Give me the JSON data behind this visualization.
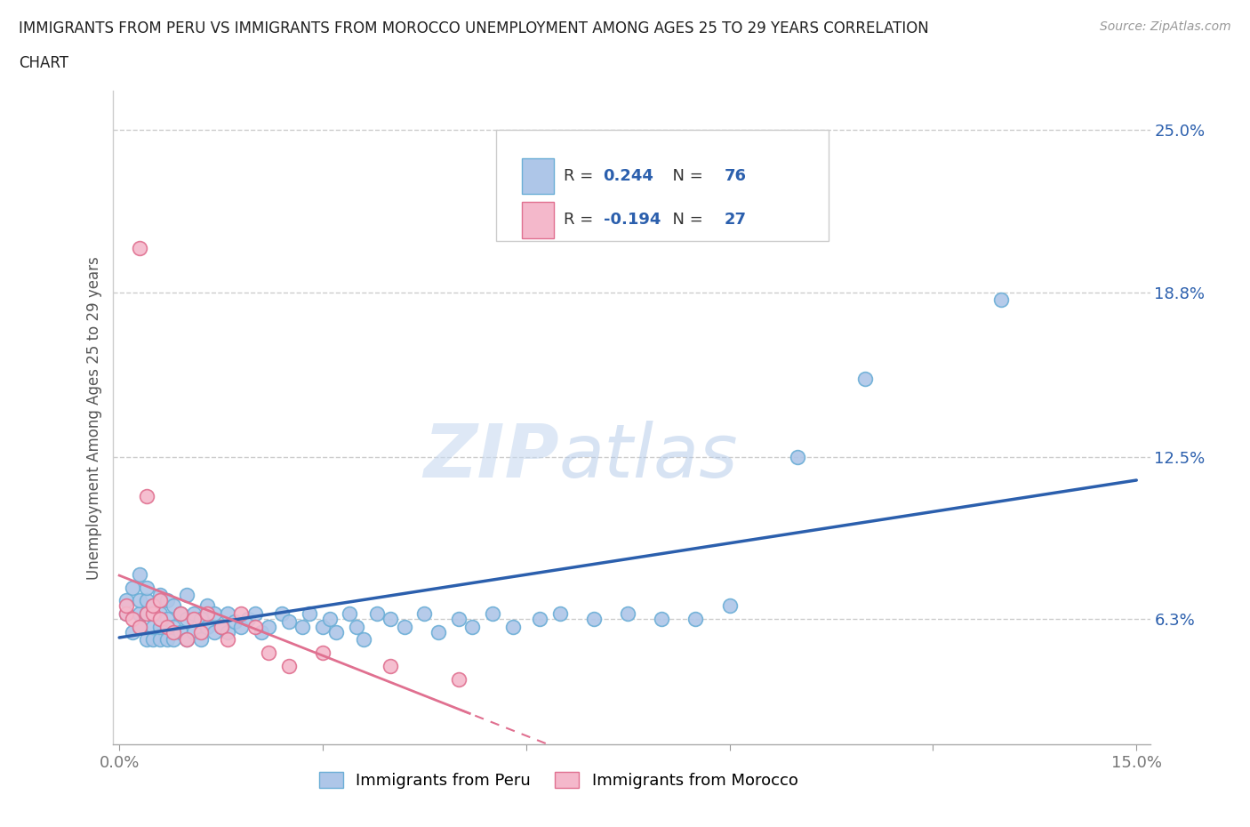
{
  "title_line1": "IMMIGRANTS FROM PERU VS IMMIGRANTS FROM MOROCCO UNEMPLOYMENT AMONG AGES 25 TO 29 YEARS CORRELATION",
  "title_line2": "CHART",
  "source": "Source: ZipAtlas.com",
  "ylabel": "Unemployment Among Ages 25 to 29 years",
  "ytick_labels": [
    "6.3%",
    "12.5%",
    "18.8%",
    "25.0%"
  ],
  "ytick_values": [
    0.063,
    0.125,
    0.188,
    0.25
  ],
  "xmin": -0.001,
  "xmax": 0.152,
  "ymin": 0.015,
  "ymax": 0.265,
  "peru_color": "#aec6e8",
  "peru_edge_color": "#6baed6",
  "morocco_color": "#f4b8cb",
  "morocco_edge_color": "#e07090",
  "trend_peru_color": "#2b5fad",
  "trend_morocco_color": "#e07090",
  "watermark_color": "#dce8f5",
  "legend_peru_label": "Immigrants from Peru",
  "legend_morocco_label": "Immigrants from Morocco",
  "peru_R": 0.244,
  "peru_N": 76,
  "morocco_R": -0.194,
  "morocco_N": 27,
  "peru_x": [
    0.001,
    0.001,
    0.002,
    0.002,
    0.003,
    0.003,
    0.003,
    0.003,
    0.004,
    0.004,
    0.004,
    0.004,
    0.005,
    0.005,
    0.005,
    0.006,
    0.006,
    0.006,
    0.006,
    0.007,
    0.007,
    0.007,
    0.008,
    0.008,
    0.008,
    0.009,
    0.009,
    0.01,
    0.01,
    0.01,
    0.011,
    0.011,
    0.012,
    0.012,
    0.013,
    0.013,
    0.014,
    0.014,
    0.015,
    0.016,
    0.016,
    0.017,
    0.018,
    0.019,
    0.02,
    0.021,
    0.022,
    0.024,
    0.025,
    0.027,
    0.028,
    0.03,
    0.031,
    0.032,
    0.034,
    0.035,
    0.036,
    0.038,
    0.04,
    0.042,
    0.045,
    0.047,
    0.05,
    0.052,
    0.055,
    0.058,
    0.062,
    0.065,
    0.07,
    0.075,
    0.08,
    0.085,
    0.09,
    0.1,
    0.11,
    0.13
  ],
  "peru_y": [
    0.065,
    0.07,
    0.058,
    0.075,
    0.06,
    0.065,
    0.07,
    0.08,
    0.055,
    0.065,
    0.07,
    0.075,
    0.055,
    0.06,
    0.068,
    0.055,
    0.06,
    0.065,
    0.072,
    0.055,
    0.063,
    0.07,
    0.055,
    0.06,
    0.068,
    0.058,
    0.065,
    0.055,
    0.063,
    0.072,
    0.058,
    0.065,
    0.055,
    0.063,
    0.06,
    0.068,
    0.058,
    0.065,
    0.06,
    0.058,
    0.065,
    0.062,
    0.06,
    0.063,
    0.065,
    0.058,
    0.06,
    0.065,
    0.062,
    0.06,
    0.065,
    0.06,
    0.063,
    0.058,
    0.065,
    0.06,
    0.055,
    0.065,
    0.063,
    0.06,
    0.065,
    0.058,
    0.063,
    0.06,
    0.065,
    0.06,
    0.063,
    0.065,
    0.063,
    0.065,
    0.063,
    0.063,
    0.068,
    0.125,
    0.155,
    0.185
  ],
  "morocco_x": [
    0.001,
    0.001,
    0.002,
    0.003,
    0.003,
    0.004,
    0.004,
    0.005,
    0.005,
    0.006,
    0.006,
    0.007,
    0.008,
    0.009,
    0.01,
    0.011,
    0.012,
    0.013,
    0.015,
    0.016,
    0.018,
    0.02,
    0.022,
    0.025,
    0.03,
    0.04,
    0.05
  ],
  "morocco_y": [
    0.065,
    0.068,
    0.063,
    0.06,
    0.205,
    0.065,
    0.11,
    0.065,
    0.068,
    0.063,
    0.07,
    0.06,
    0.058,
    0.065,
    0.055,
    0.063,
    0.058,
    0.065,
    0.06,
    0.055,
    0.065,
    0.06,
    0.05,
    0.045,
    0.05,
    0.045,
    0.04
  ],
  "background_color": "#ffffff"
}
